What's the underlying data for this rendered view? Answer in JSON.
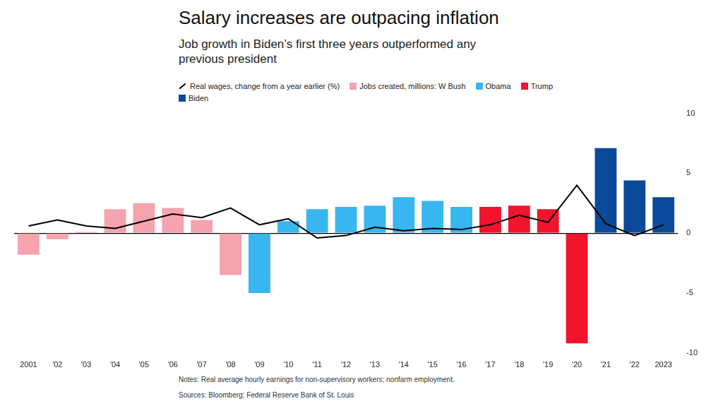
{
  "chart_data": {
    "type": "bar",
    "title": "Salary increases are outpacing inflation",
    "subtitle": "Job growth in Biden’s first three years outperformed any previous president",
    "categories": [
      "2001",
      "'02",
      "'03",
      "'04",
      "'05",
      "'06",
      "'07",
      "'08",
      "'09",
      "'10",
      "'11",
      "'12",
      "'13",
      "'14",
      "'15",
      "'16",
      "'17",
      "'18",
      "'19",
      "'20",
      "'21",
      "'22",
      "2023"
    ],
    "series": [
      {
        "name": "Real wages, change from a year earlier (%)",
        "type": "line",
        "color": "#000000",
        "values": [
          0.6,
          1.1,
          0.6,
          0.4,
          1.0,
          1.6,
          1.3,
          2.1,
          0.7,
          1.2,
          -0.4,
          -0.2,
          0.5,
          0.2,
          0.4,
          0.3,
          0.7,
          1.5,
          0.9,
          4.0,
          0.8,
          -0.2,
          0.7
        ]
      },
      {
        "type": "bar",
        "values": [
          -1.8,
          -0.5,
          0.1,
          2.0,
          2.5,
          2.1,
          1.1,
          -3.5,
          -5.0,
          1.0,
          2.0,
          2.2,
          2.3,
          3.0,
          2.7,
          2.2,
          2.2,
          2.3,
          2.0,
          -9.2,
          7.1,
          4.4,
          3.0
        ],
        "colors": [
          "#f5a3ae",
          "#f5a3ae",
          "#f5a3ae",
          "#f5a3ae",
          "#f5a3ae",
          "#f5a3ae",
          "#f5a3ae",
          "#f5a3ae",
          "#38b6ef",
          "#38b6ef",
          "#38b6ef",
          "#38b6ef",
          "#38b6ef",
          "#38b6ef",
          "#38b6ef",
          "#38b6ef",
          "#f0142c",
          "#f0142c",
          "#f0142c",
          "#f0142c",
          "#0b4a9b",
          "#0b4a9b",
          "#0b4a9b"
        ],
        "groups": [
          {
            "name": "Jobs created, millions: W Bush",
            "color": "#f5a3ae"
          },
          {
            "name": "Obama",
            "color": "#38b6ef"
          },
          {
            "name": "Trump",
            "color": "#f0142c"
          },
          {
            "name": "Biden",
            "color": "#0b4a9b"
          }
        ]
      }
    ],
    "ylim": [
      -10,
      10
    ],
    "yticks": [
      -10,
      -5,
      0,
      5,
      10
    ],
    "grid": false,
    "legend": "top left",
    "notes": "Notes: Real average hourly earnings for non-supervisory workers; nonfarm employment.",
    "source": "Sources: Bloomberg; Federal Reserve Bank of St. Louis"
  }
}
